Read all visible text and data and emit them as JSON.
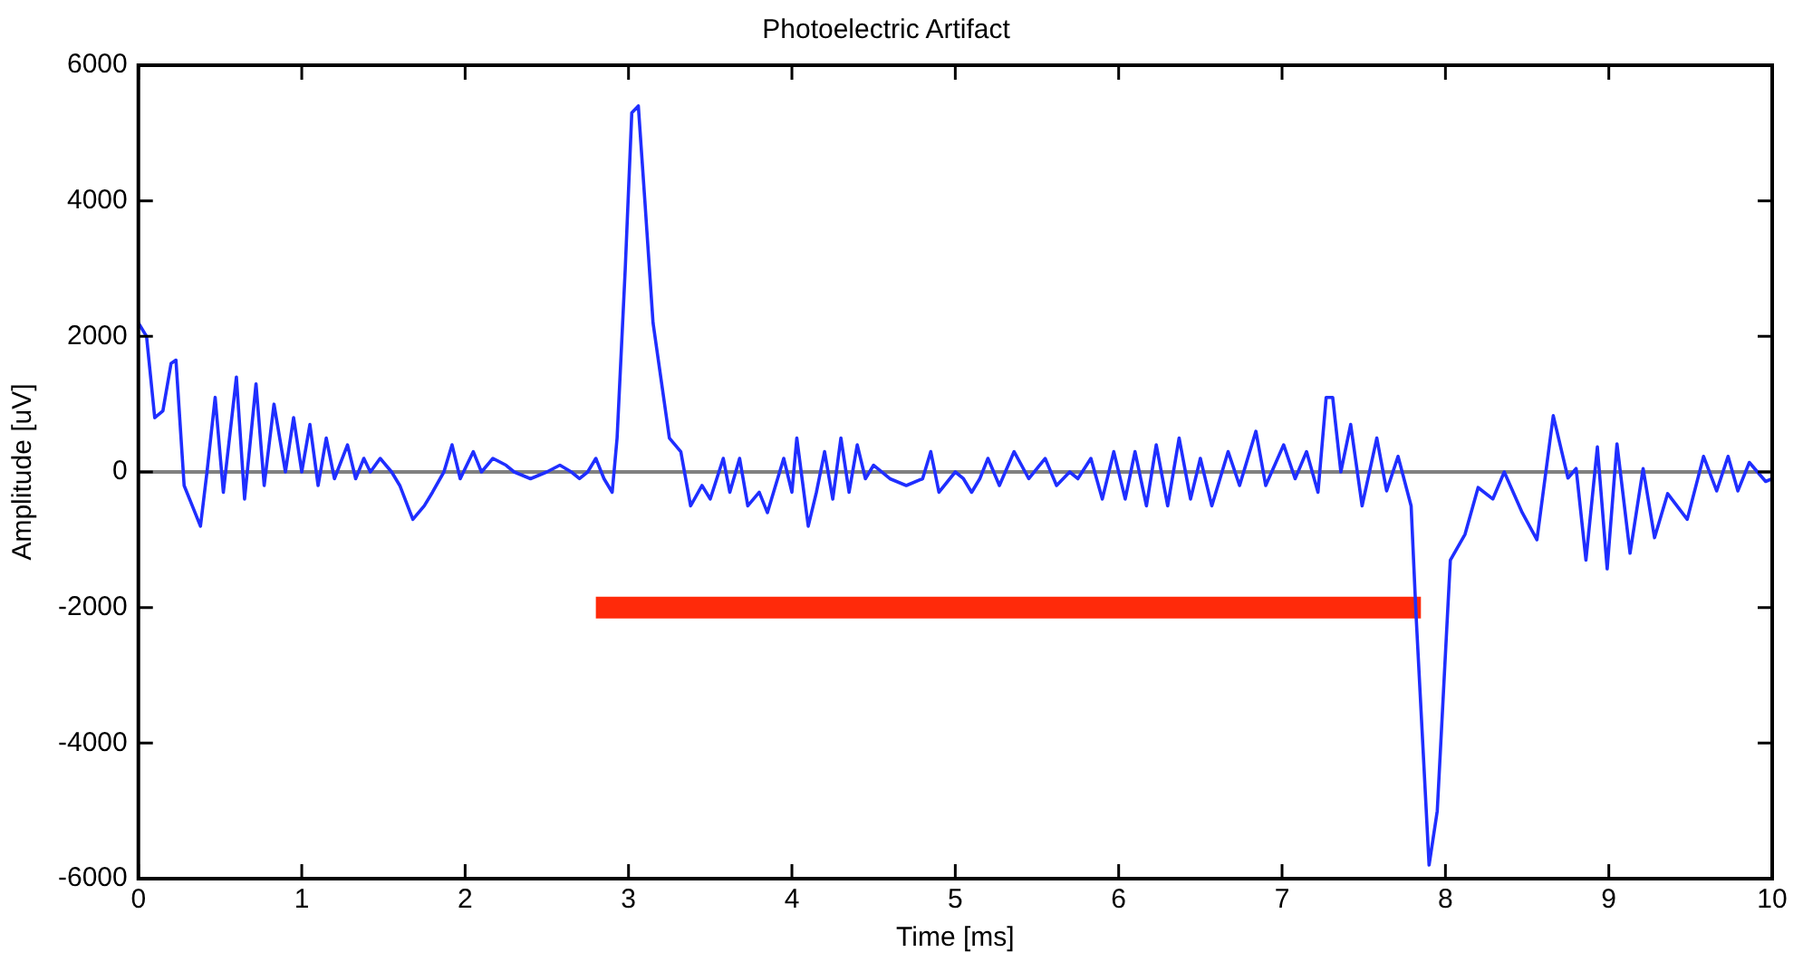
{
  "chart_data": {
    "type": "line",
    "title": "Photoelectric Artifact",
    "xlabel": "Time [ms]",
    "ylabel": "Amplitude [uV]",
    "xlim": [
      0,
      10
    ],
    "xticks": [
      0,
      1,
      2,
      3,
      4,
      5,
      6,
      7,
      8,
      9,
      10
    ],
    "ylim": [
      -6000,
      6000
    ],
    "yticks": [
      -6000,
      -4000,
      -2000,
      0,
      2000,
      4000,
      6000
    ],
    "grid": false,
    "legend": false,
    "marker": "none",
    "ref_lines": [
      {
        "axis": "y",
        "value": 0,
        "color": "#808080"
      }
    ],
    "series": [
      {
        "color": "#1f2eff",
        "x": [
          0,
          0.05,
          0.1,
          0.15,
          0.2,
          0.23,
          0.28,
          0.33,
          0.38,
          0.42,
          0.47,
          0.52,
          0.6,
          0.65,
          0.72,
          0.77,
          0.83,
          0.9,
          0.95,
          1.0,
          1.05,
          1.1,
          1.15,
          1.2,
          1.28,
          1.33,
          1.38,
          1.42,
          1.48,
          1.55,
          1.6,
          1.68,
          1.75,
          1.8,
          1.87,
          1.92,
          1.97,
          2.05,
          2.1,
          2.17,
          2.25,
          2.3,
          2.4,
          2.5,
          2.58,
          2.65,
          2.7,
          2.75,
          2.8,
          2.85,
          2.9,
          2.93,
          2.98,
          3.02,
          3.06,
          3.1,
          3.15,
          3.25,
          3.32,
          3.38,
          3.45,
          3.5,
          3.58,
          3.62,
          3.68,
          3.73,
          3.8,
          3.85,
          3.9,
          3.95,
          4.0,
          4.03,
          4.1,
          4.15,
          4.2,
          4.25,
          4.3,
          4.35,
          4.4,
          4.45,
          4.5,
          4.6,
          4.7,
          4.8,
          4.85,
          4.9,
          5.0,
          5.05,
          5.1,
          5.15,
          5.2,
          5.27,
          5.36,
          5.45,
          5.55,
          5.62,
          5.7,
          5.75,
          5.83,
          5.9,
          5.97,
          6.04,
          6.1,
          6.17,
          6.23,
          6.3,
          6.37,
          6.44,
          6.5,
          6.57,
          6.67,
          6.74,
          6.84,
          6.9,
          7.01,
          7.08,
          7.15,
          7.22,
          7.27,
          7.31,
          7.36,
          7.42,
          7.49,
          7.58,
          7.64,
          7.71,
          7.79,
          7.82,
          7.9,
          7.95,
          8.03,
          8.12,
          8.2,
          8.29,
          8.36,
          8.47,
          8.56,
          8.66,
          8.75,
          8.8,
          8.86,
          8.93,
          8.99,
          9.05,
          9.13,
          9.21,
          9.28,
          9.36,
          9.48,
          9.58,
          9.66,
          9.73,
          9.79,
          9.86,
          9.96,
          10
        ],
        "values": [
          2200,
          2000,
          800,
          900,
          1600,
          1650,
          -200,
          -500,
          -800,
          0,
          1100,
          -300,
          1400,
          -400,
          1300,
          -200,
          1000,
          0,
          800,
          0,
          700,
          -200,
          500,
          -100,
          400,
          -100,
          200,
          0,
          200,
          0,
          -200,
          -700,
          -500,
          -300,
          0,
          400,
          -100,
          300,
          0,
          200,
          100,
          0,
          -100,
          0,
          100,
          0,
          -100,
          0,
          200,
          -100,
          -300,
          500,
          3000,
          5300,
          5400,
          4000,
          2200,
          500,
          300,
          -500,
          -200,
          -400,
          200,
          -300,
          200,
          -500,
          -300,
          -600,
          -200,
          200,
          -300,
          500,
          -800,
          -300,
          300,
          -400,
          500,
          -300,
          400,
          -100,
          100,
          -100,
          -200,
          -100,
          300,
          -300,
          0,
          -100,
          -300,
          -100,
          200,
          -200,
          300,
          -100,
          200,
          -200,
          0,
          -100,
          200,
          -400,
          300,
          -400,
          300,
          -500,
          400,
          -500,
          500,
          -400,
          200,
          -500,
          300,
          -200,
          600,
          -200,
          400,
          -100,
          300,
          -300,
          1100,
          1100,
          0,
          700,
          -500,
          500,
          -280,
          230,
          -500,
          -2100,
          -5800,
          -5000,
          -1300,
          -920,
          -230,
          -400,
          0,
          -600,
          -1000,
          830,
          -90,
          50,
          -1300,
          370,
          -1430,
          415,
          -1200,
          50,
          -970,
          -320,
          -700,
          230,
          -280,
          230,
          -280,
          140,
          -140,
          -100
        ]
      },
      {
        "color": "#ff2a0a",
        "x": [
          2.8,
          7.85
        ],
        "values": [
          -2000,
          -2000
        ]
      }
    ]
  }
}
